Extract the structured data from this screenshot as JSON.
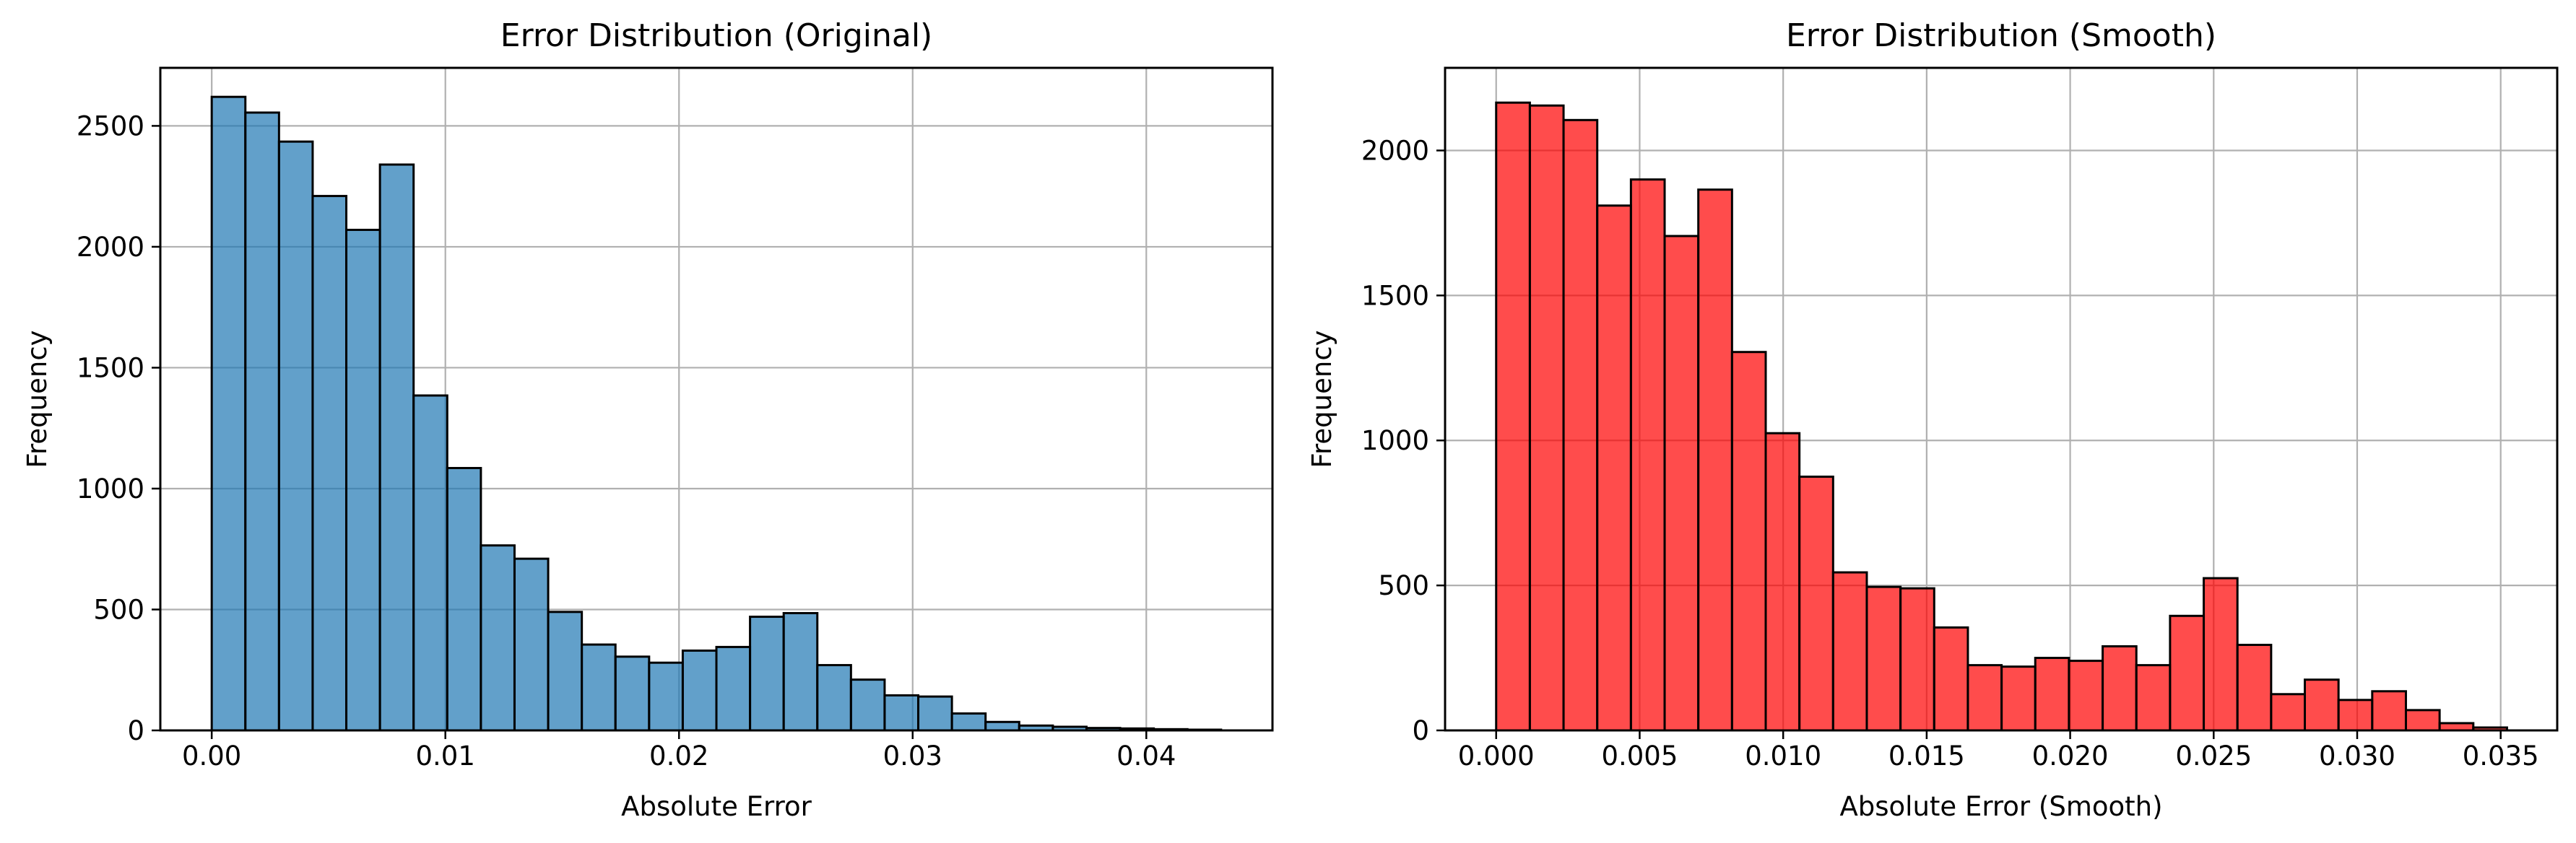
{
  "chart_data": [
    {
      "type": "bar",
      "title": "Error Distribution (Original)",
      "xlabel": "Absolute Error",
      "ylabel": "Frequency",
      "bar_color": "#1f77b4",
      "bar_alpha": 0.7,
      "edge_color": "#000000",
      "grid": true,
      "xlim": [
        -0.0022,
        0.0454
      ],
      "ylim": [
        0,
        2740
      ],
      "xticks": [
        0.0,
        0.01,
        0.02,
        0.03,
        0.04
      ],
      "xtick_labels": [
        "0.00",
        "0.01",
        "0.02",
        "0.03",
        "0.04"
      ],
      "yticks": [
        0,
        500,
        1000,
        1500,
        2000,
        2500
      ],
      "ytick_labels": [
        "0",
        "500",
        "1000",
        "1500",
        "2000",
        "2500"
      ],
      "bin_start": 0.0,
      "bin_width": 0.00144,
      "values": [
        2620,
        2555,
        2435,
        2210,
        2070,
        2340,
        1385,
        1085,
        765,
        710,
        490,
        355,
        305,
        280,
        330,
        345,
        470,
        485,
        270,
        210,
        145,
        140,
        70,
        35,
        20,
        15,
        10,
        8,
        5,
        3
      ]
    },
    {
      "type": "bar",
      "title": "Error Distribution (Smooth)",
      "xlabel": "Absolute Error (Smooth)",
      "ylabel": "Frequency",
      "bar_color": "#ff0000",
      "bar_alpha": 0.7,
      "edge_color": "#000000",
      "grid": true,
      "xlim": [
        -0.00178,
        0.03697
      ],
      "ylim": [
        0,
        2285
      ],
      "xticks": [
        0.0,
        0.005,
        0.01,
        0.015,
        0.02,
        0.025,
        0.03,
        0.035
      ],
      "xtick_labels": [
        "0.000",
        "0.005",
        "0.010",
        "0.015",
        "0.020",
        "0.025",
        "0.030",
        "0.035"
      ],
      "yticks": [
        0,
        500,
        1000,
        1500,
        2000
      ],
      "ytick_labels": [
        "0",
        "500",
        "1000",
        "1500",
        "2000"
      ],
      "bin_start": 0.0,
      "bin_width": 0.001174,
      "values": [
        2165,
        2155,
        2105,
        1810,
        1900,
        1705,
        1865,
        1305,
        1025,
        875,
        545,
        495,
        490,
        355,
        225,
        220,
        250,
        240,
        290,
        225,
        395,
        525,
        295,
        125,
        175,
        105,
        135,
        70,
        25,
        10
      ]
    }
  ]
}
